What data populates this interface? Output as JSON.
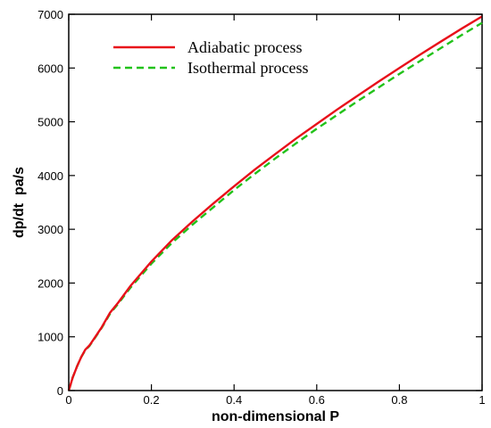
{
  "chart_data": {
    "type": "line",
    "xlabel": "non-dimensional P",
    "ylabel": "dp/dt  pa/s",
    "xlim": [
      0,
      1
    ],
    "ylim": [
      0,
      7000
    ],
    "xticks": [
      "0",
      "0.2",
      "0.4",
      "0.6",
      "0.8",
      "1"
    ],
    "yticks": [
      "0",
      "1000",
      "2000",
      "3000",
      "4000",
      "5000",
      "6000",
      "7000"
    ],
    "grid": false,
    "legend_position": "top-left",
    "series": [
      {
        "name": "Adiabatic process",
        "color": "#e8101a",
        "style": "solid",
        "x": [
          0,
          0.01,
          0.02,
          0.03,
          0.04,
          0.05,
          0.06,
          0.08,
          0.1,
          0.12,
          0.15,
          0.2,
          0.25,
          0.3,
          0.35,
          0.4,
          0.45,
          0.5,
          0.55,
          0.6,
          0.65,
          0.7,
          0.75,
          0.8,
          0.85,
          0.9,
          0.95,
          1.0
        ],
        "y": [
          0,
          250,
          450,
          620,
          760,
          840,
          950,
          1180,
          1450,
          1640,
          1950,
          2400,
          2800,
          3150,
          3480,
          3800,
          4110,
          4400,
          4690,
          4960,
          5230,
          5490,
          5750,
          6000,
          6250,
          6490,
          6730,
          6960
        ]
      },
      {
        "name": "Isothermal process",
        "color": "#22c21a",
        "style": "dashed",
        "x": [
          0,
          0.01,
          0.02,
          0.03,
          0.04,
          0.05,
          0.06,
          0.08,
          0.1,
          0.12,
          0.15,
          0.2,
          0.25,
          0.3,
          0.35,
          0.4,
          0.45,
          0.5,
          0.55,
          0.6,
          0.65,
          0.7,
          0.75,
          0.8,
          0.85,
          0.9,
          0.95,
          1.0
        ],
        "y": [
          0,
          250,
          450,
          620,
          750,
          830,
          940,
          1170,
          1430,
          1620,
          1920,
          2360,
          2750,
          3090,
          3410,
          3730,
          4030,
          4320,
          4600,
          4870,
          5130,
          5390,
          5640,
          5890,
          6130,
          6370,
          6610,
          6840
        ]
      }
    ]
  }
}
